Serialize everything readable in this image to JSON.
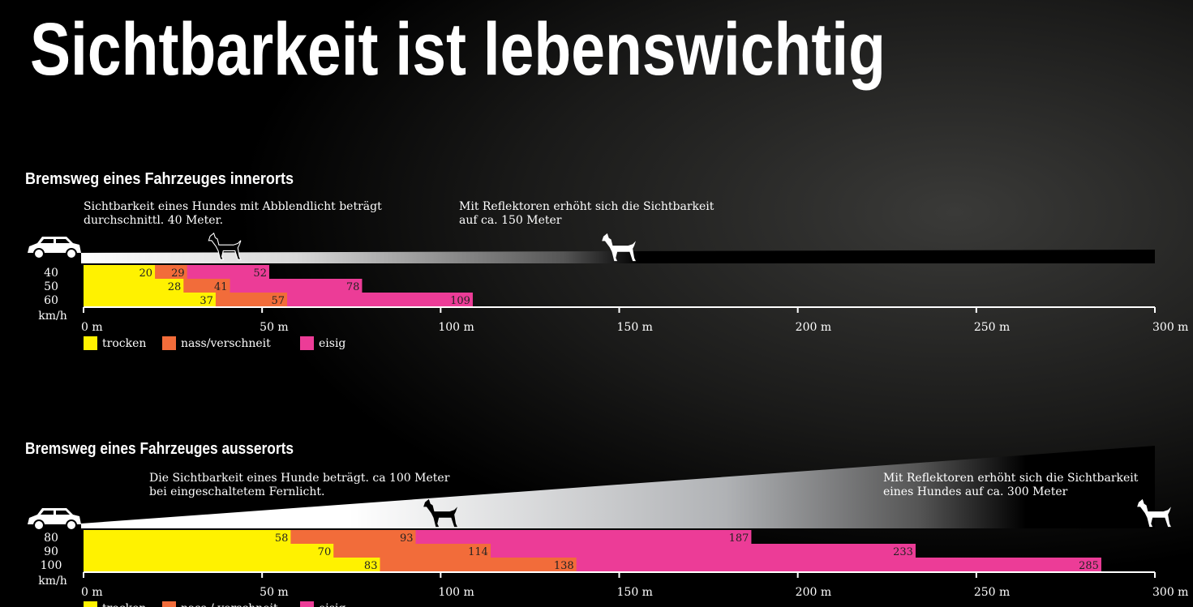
{
  "title": "Sichtbarkeit ist lebenswichtig",
  "chart_data": [
    {
      "type": "bar",
      "title": "Bremsweg eines Fahrzeuges innerorts",
      "annotations": [
        [
          "Sichtbarkeit eines Hundes mit Abblendlicht beträgt",
          "durchschnittl. 40 Meter."
        ],
        [
          "Mit Reflektoren erhöht sich die Sichtbarkeit",
          "auf ca. 150 Meter"
        ]
      ],
      "categories": [
        "40",
        "50",
        "60"
      ],
      "category_unit": "km/h",
      "series": [
        {
          "name": "trocken",
          "color": "#fff200",
          "values": [
            20,
            28,
            37
          ]
        },
        {
          "name": "nass/verschneit",
          "color": "#f26c3a",
          "values": [
            29,
            41,
            57
          ]
        },
        {
          "name": "eisig",
          "color": "#ec3c97",
          "values": [
            52,
            78,
            109
          ]
        }
      ],
      "xlim": [
        0,
        300
      ],
      "xticks": [
        {
          "value": 0,
          "label": "0 m"
        },
        {
          "value": 50,
          "label": "50 m"
        },
        {
          "value": 100,
          "label": "100 m"
        },
        {
          "value": 150,
          "label": "150 m"
        },
        {
          "value": 200,
          "label": "200 m"
        },
        {
          "value": 250,
          "label": "250 m"
        },
        {
          "value": 300,
          "label": "300 m"
        }
      ]
    },
    {
      "type": "bar",
      "title": "Bremsweg eines Fahrzeuges ausserorts",
      "annotations": [
        [
          "Die Sichtbarkeit eines Hunde beträgt. ca 100 Meter",
          "bei eingeschaltetem Fernlicht."
        ],
        [
          "Mit Reflektoren erhöht sich die Sichtbarkeit",
          "eines Hundes auf ca. 300 Meter"
        ]
      ],
      "categories": [
        "80",
        "90",
        "100"
      ],
      "category_unit": "km/h",
      "series": [
        {
          "name": "trocken",
          "color": "#fff200",
          "values": [
            58,
            70,
            83
          ]
        },
        {
          "name": "nass / verschneit",
          "color": "#f26c3a",
          "values": [
            93,
            114,
            138
          ]
        },
        {
          "name": "eisig",
          "color": "#ec3c97",
          "values": [
            187,
            233,
            285
          ]
        }
      ],
      "xlim": [
        0,
        300
      ],
      "xticks": [
        {
          "value": 0,
          "label": "0 m"
        },
        {
          "value": 50,
          "label": "50 m"
        },
        {
          "value": 100,
          "label": "100 m"
        },
        {
          "value": 150,
          "label": "150 m"
        },
        {
          "value": 200,
          "label": "200 m"
        },
        {
          "value": 250,
          "label": "250 m"
        },
        {
          "value": 300,
          "label": "300 m"
        }
      ]
    }
  ]
}
